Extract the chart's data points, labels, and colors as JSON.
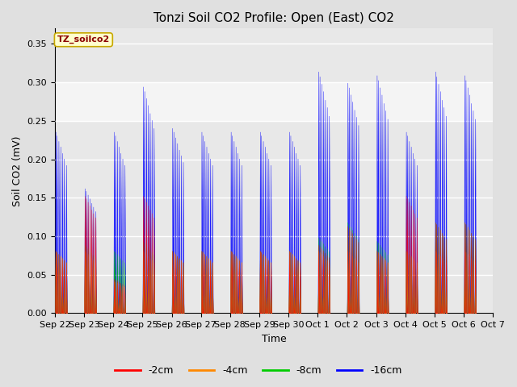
{
  "title": "Tonzi Soil CO2 Profile: Open (East) CO2",
  "ylabel": "Soil CO2 (mV)",
  "xlabel": "Time",
  "legend_label": "TZ_soilco2",
  "ylim": [
    0,
    0.37
  ],
  "yticks": [
    0.0,
    0.05,
    0.1,
    0.15,
    0.2,
    0.25,
    0.3,
    0.35
  ],
  "series_labels": [
    "-2cm",
    "-4cm",
    "-8cm",
    "-16cm"
  ],
  "series_colors": [
    "#ff0000",
    "#ff8800",
    "#00cc00",
    "#0000ff"
  ],
  "background_color": "#e0e0e0",
  "plot_bg_color": "#e8e8e8",
  "x_tick_labels": [
    "Sep 22",
    "Sep 23",
    "Sep 24",
    "Sep 25",
    "Sep 26",
    "Sep 27",
    "Sep 28",
    "Sep 29",
    "Sep 30",
    "Oct 1",
    "Oct 2",
    "Oct 3",
    "Oct 4",
    "Oct 5",
    "Oct 6",
    "Oct 7"
  ],
  "shaded_band_lo": 0.25,
  "shaded_band_hi": 0.3,
  "title_fontsize": 11,
  "axis_fontsize": 9,
  "tick_fontsize": 8,
  "n_days": 15,
  "day_peaks_16": [
    0.24,
    0.165,
    0.24,
    0.3,
    0.245,
    0.24,
    0.24,
    0.24,
    0.24,
    0.32,
    0.305,
    0.315,
    0.24,
    0.32,
    0.315
  ],
  "day_peaks_8": [
    0.082,
    0.09,
    0.082,
    0.095,
    0.082,
    0.082,
    0.082,
    0.082,
    0.082,
    0.1,
    0.12,
    0.095,
    0.082,
    0.12,
    0.12
  ],
  "day_peaks_4": [
    0.082,
    0.082,
    0.042,
    0.082,
    0.082,
    0.082,
    0.082,
    0.082,
    0.082,
    0.082,
    0.082,
    0.082,
    0.082,
    0.082,
    0.082
  ],
  "day_peaks_2": [
    0.082,
    0.155,
    0.045,
    0.155,
    0.082,
    0.082,
    0.082,
    0.082,
    0.082,
    0.09,
    0.115,
    0.082,
    0.155,
    0.12,
    0.12
  ],
  "spike_positions": [
    [
      0.08,
      0.18,
      0.25,
      0.35,
      0.55,
      0.65,
      0.75,
      0.88
    ],
    [
      0.08,
      0.18,
      0.25,
      0.35,
      0.55,
      0.65,
      0.75,
      0.88
    ],
    [
      0.08,
      0.18,
      0.25,
      0.35,
      0.55,
      0.65,
      0.75,
      0.88
    ],
    [
      0.08,
      0.18,
      0.25,
      0.35,
      0.55,
      0.65,
      0.75,
      0.88
    ],
    [
      0.08,
      0.18,
      0.25,
      0.35,
      0.55,
      0.65,
      0.75,
      0.88
    ],
    [
      0.08,
      0.18,
      0.25,
      0.35,
      0.55,
      0.65,
      0.75,
      0.88
    ],
    [
      0.08,
      0.18,
      0.25,
      0.35,
      0.55,
      0.65,
      0.75,
      0.88
    ],
    [
      0.08,
      0.18,
      0.25,
      0.35,
      0.55,
      0.65,
      0.75,
      0.88
    ],
    [
      0.08,
      0.18,
      0.25,
      0.35,
      0.55,
      0.65,
      0.75,
      0.88
    ],
    [
      0.08,
      0.18,
      0.25,
      0.35,
      0.55,
      0.65,
      0.75,
      0.88
    ],
    [
      0.08,
      0.18,
      0.25,
      0.35,
      0.55,
      0.65,
      0.75,
      0.88
    ],
    [
      0.08,
      0.18,
      0.25,
      0.35,
      0.55,
      0.65,
      0.75,
      0.88
    ],
    [
      0.08,
      0.18,
      0.25,
      0.35,
      0.55,
      0.65,
      0.75,
      0.88
    ],
    [
      0.08,
      0.18,
      0.25,
      0.35,
      0.55,
      0.65,
      0.75,
      0.88
    ],
    [
      0.08,
      0.18,
      0.25,
      0.35,
      0.55,
      0.65,
      0.75,
      0.88
    ]
  ]
}
